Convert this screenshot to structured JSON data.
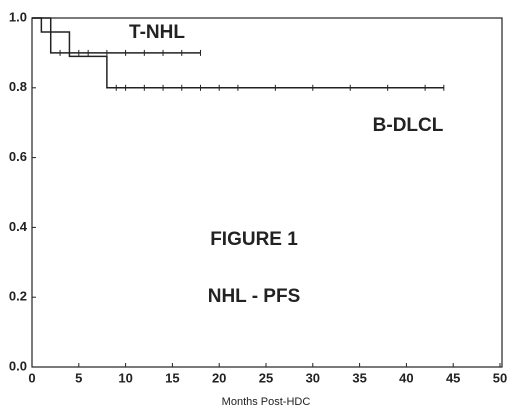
{
  "chart_data": {
    "type": "step",
    "annotations": [
      "FIGURE 1",
      "NHL - PFS"
    ],
    "xlabel": "Months Post-HDC",
    "series": [
      {
        "name": "T-NHL",
        "color": "#222222",
        "x": [
          0,
          2,
          18
        ],
        "values": [
          1.0,
          0.9,
          0.9
        ],
        "censor_x": [
          3,
          5,
          6,
          8,
          10,
          12,
          14,
          16,
          18
        ]
      },
      {
        "name": "B-DLCL",
        "color": "#222222",
        "x": [
          0,
          1,
          4,
          8,
          44
        ],
        "values": [
          1.0,
          0.96,
          0.89,
          0.8,
          0.8
        ],
        "censor_x": [
          9,
          10,
          12,
          14,
          16,
          18,
          20,
          22,
          26,
          30,
          34,
          38,
          42,
          44
        ]
      }
    ],
    "xlim": [
      0,
      50
    ],
    "xticks": [
      0,
      5,
      10,
      15,
      20,
      25,
      30,
      35,
      40,
      45,
      50
    ],
    "ylim": [
      0,
      1
    ],
    "yticks": [
      {
        "value": 0,
        "label": "0.0"
      },
      {
        "value": 0.2,
        "label": "0.2"
      },
      {
        "value": 0.4,
        "label": "0.4"
      },
      {
        "value": 0.6,
        "label": "0.6"
      },
      {
        "value": 0.8,
        "label": "0.8"
      },
      {
        "value": 1,
        "label": "1.0"
      }
    ]
  }
}
